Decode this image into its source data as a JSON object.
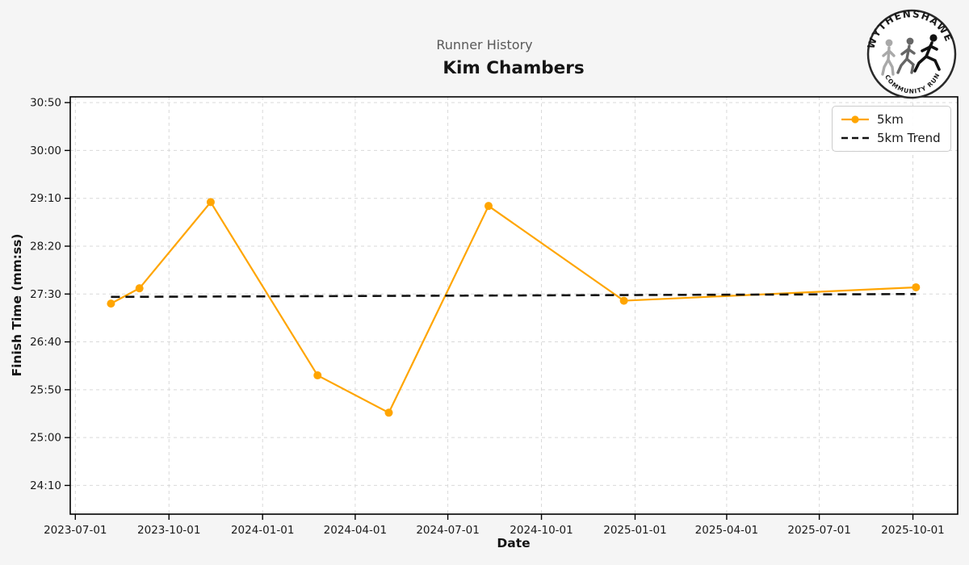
{
  "header": {
    "suptitle": "Runner History",
    "title": "Kim Chambers"
  },
  "logo": {
    "top_text": "WYTHENSHAWE",
    "bottom_text": "COMMUNITY RUN"
  },
  "chart_data": {
    "type": "line",
    "suptitle": "Runner History",
    "title": "Kim Chambers",
    "xlabel": "Date",
    "ylabel": "Finish Time (mm:ss)",
    "grid": true,
    "legend_position": "upper right",
    "x_tick_labels": [
      "2023-07-01",
      "2023-10-01",
      "2024-01-01",
      "2024-04-01",
      "2024-07-01",
      "2024-10-01",
      "2025-01-01",
      "2025-04-01",
      "2025-07-01",
      "2025-10-01"
    ],
    "y_tick_labels": [
      "30:50",
      "30:00",
      "29:10",
      "28:20",
      "27:30",
      "26:40",
      "25:50",
      "25:00",
      "24:10"
    ],
    "xlim": [
      "2023-06-26",
      "2025-11-14"
    ],
    "ylim_mmss": [
      "23:40",
      "30:56"
    ],
    "series": [
      {
        "name": "5km",
        "color": "#FFA500",
        "line_style": "solid",
        "marker": "circle",
        "points": [
          [
            "2023-08-05",
            "27:20"
          ],
          [
            "2023-09-02",
            "27:36"
          ],
          [
            "2023-11-11",
            "29:06"
          ],
          [
            "2024-02-24",
            "26:05"
          ],
          [
            "2024-05-04",
            "25:26"
          ],
          [
            "2024-08-10",
            "29:02"
          ],
          [
            "2024-12-21",
            "27:23"
          ],
          [
            "2025-10-04",
            "27:37"
          ]
        ]
      },
      {
        "name": "5km Trend",
        "color": "#111111",
        "line_style": "dashed",
        "marker": "none",
        "points": [
          [
            "2023-08-05",
            "27:27"
          ],
          [
            "2025-10-04",
            "27:30"
          ]
        ]
      }
    ],
    "colors": {
      "figure_background": "#f5f5f5",
      "plot_background": "#ffffff",
      "gridline": "#d9d9d9",
      "spine": "#000000",
      "tick_text": "#1a1a1a"
    }
  }
}
